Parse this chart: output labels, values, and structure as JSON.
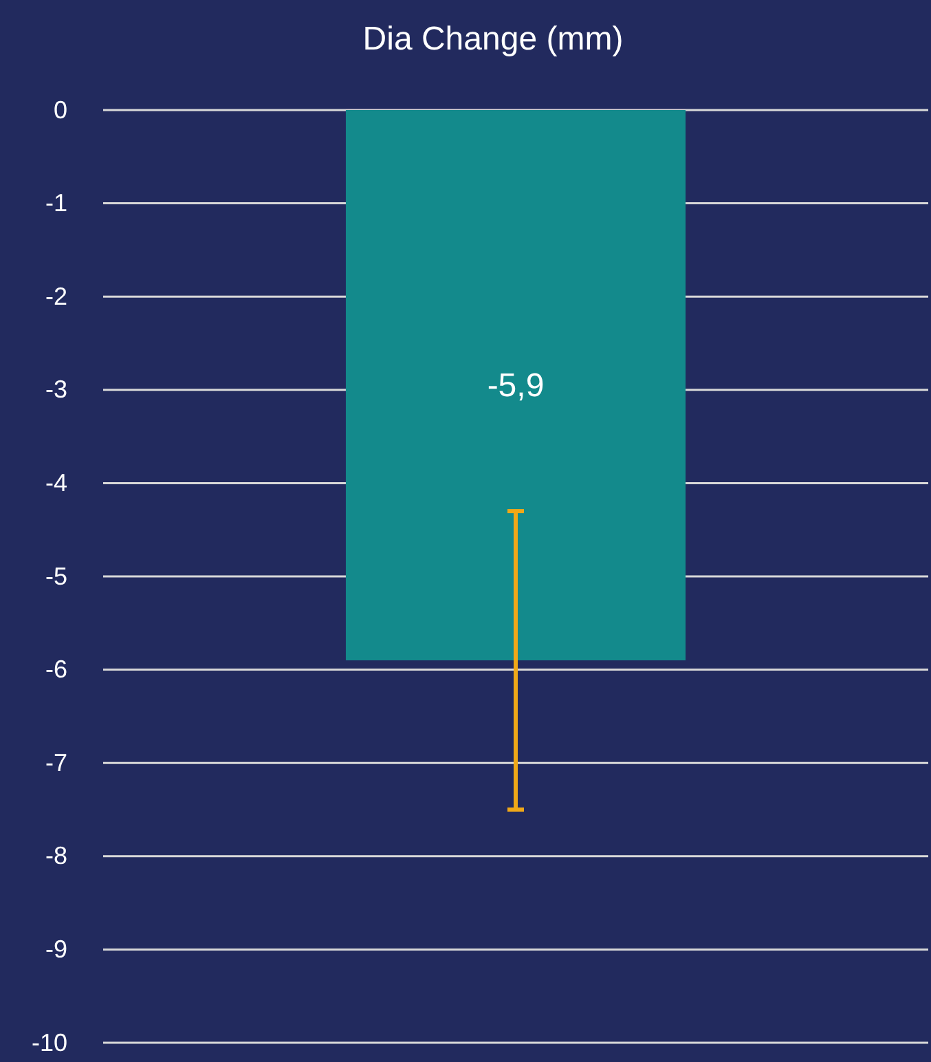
{
  "chart_data": {
    "type": "bar",
    "title": "Dia Change (mm)",
    "categories": [
      null
    ],
    "series": [
      {
        "color": "#138a8c",
        "values": [
          -5.9
        ],
        "value_labels": [
          "-5,9"
        ],
        "errors": [
          [
            -7.5,
            -4.3
          ]
        ]
      }
    ],
    "ylim": [
      -10,
      0
    ],
    "yticks": [
      0,
      -1,
      -2,
      -3,
      -4,
      -5,
      -6,
      -7,
      -8,
      -9,
      -10
    ],
    "grid": "y"
  }
}
